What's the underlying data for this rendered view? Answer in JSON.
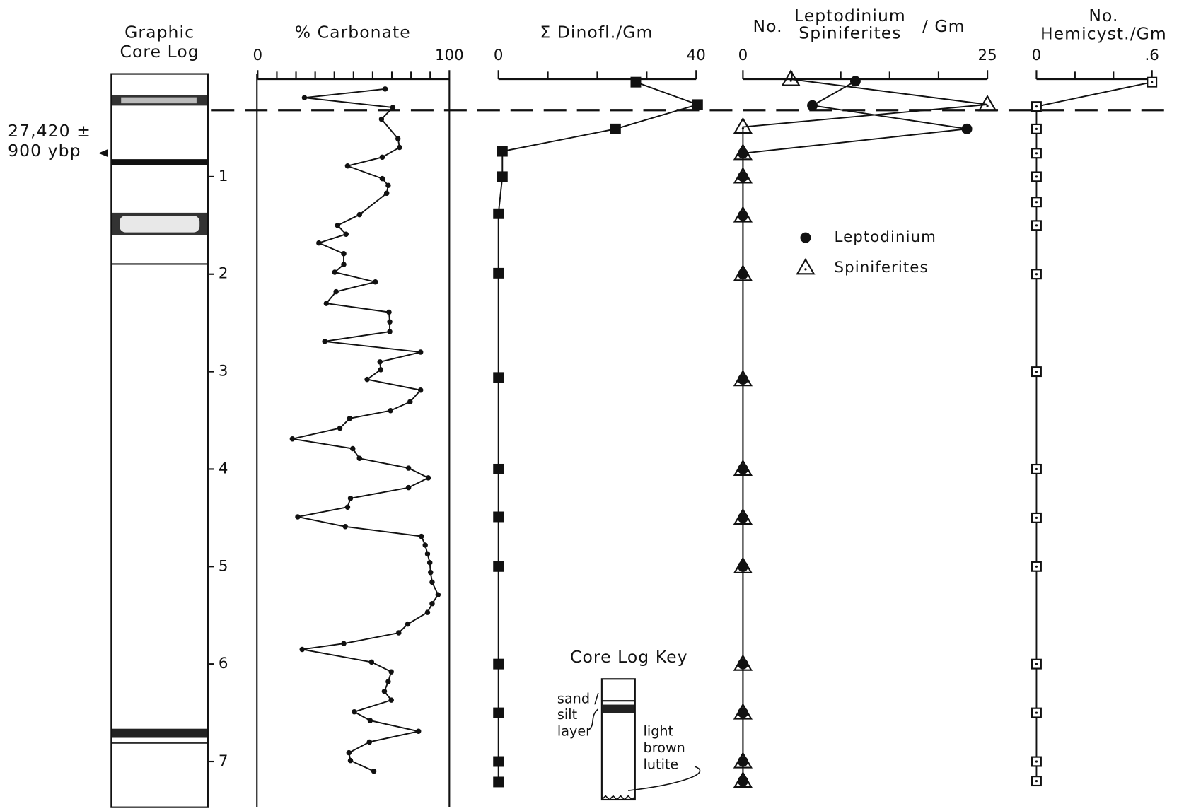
{
  "chart_data": [
    {
      "type": "core-log",
      "title_lines": [
        "Graphic",
        "Core Log"
      ],
      "ylim": [
        0,
        7.5
      ],
      "yticks": [
        1,
        2,
        3,
        4,
        5,
        6,
        7
      ],
      "date_label": [
        "27,420 ±",
        "900 ybp"
      ],
      "key": {
        "title": "Core Log Key",
        "sand_silt": [
          "sand /",
          "silt",
          "layer"
        ],
        "lutite": [
          "light",
          "brown",
          "lutite"
        ]
      }
    },
    {
      "type": "line",
      "title": "% Carbonate",
      "xlim": [
        0,
        100
      ],
      "xticks": [
        0,
        100
      ],
      "xminor": [
        10,
        20,
        30,
        40,
        50,
        60,
        70,
        80,
        90
      ],
      "series": [
        {
          "marker": "dot",
          "color": "#111111",
          "depth": [
            0.1,
            0.19,
            0.29,
            0.41,
            0.61,
            0.7,
            0.8,
            0.89,
            1.02,
            1.09,
            1.17,
            1.39,
            1.5,
            1.59,
            1.68,
            1.79,
            1.9,
            1.98,
            2.08,
            2.18,
            2.3,
            2.39,
            2.49,
            2.59,
            2.69,
            2.8,
            2.9,
            2.98,
            3.08,
            3.19,
            3.31,
            3.4,
            3.48,
            3.58,
            3.69,
            3.79,
            3.89,
            3.99,
            4.09,
            4.19,
            4.3,
            4.39,
            4.49,
            4.59,
            4.69,
            4.78,
            4.87,
            4.96,
            5.06,
            5.16,
            5.29,
            5.38,
            5.47,
            5.59,
            5.68,
            5.79,
            5.85,
            5.98,
            6.08,
            6.18,
            6.28,
            6.37,
            6.49,
            6.58,
            6.69,
            6.8,
            6.91,
            6.99,
            7.1
          ],
          "values": [
            66.5,
            24.4,
            70.5,
            64.6,
            73.2,
            74,
            65,
            46.9,
            65,
            68.1,
            67.3,
            53.1,
            41.7,
            46.1,
            31.9,
            44.9,
            44.9,
            40.2,
            61.4,
            40.9,
            35.8,
            68.5,
            68.9,
            68.9,
            35,
            85,
            63.8,
            64.2,
            57.1,
            85,
            79.5,
            69.3,
            48,
            42.9,
            18.1,
            49.6,
            53.1,
            78.7,
            89,
            78.7,
            48.4,
            46.9,
            20.9,
            45.7,
            85.4,
            87.4,
            88.6,
            89.8,
            90.2,
            91,
            94.1,
            91,
            88.6,
            78.3,
            73.6,
            44.9,
            23.2,
            59.4,
            69.7,
            68.1,
            66.1,
            69.7,
            50.4,
            58.7,
            83.9,
            58.3,
            47.6,
            48.4,
            60.6
          ]
        }
      ]
    },
    {
      "type": "line",
      "title": "Σ Dinofl./Gm",
      "xlim": [
        0,
        40
      ],
      "xticks": [
        0,
        40
      ],
      "xminor": [
        10,
        20,
        30
      ],
      "series": [
        {
          "marker": "square",
          "color": "#111111",
          "depth": [
            0.03,
            0.26,
            0.51,
            0.74,
            1.0,
            1.38,
            1.99,
            3.06,
            4.0,
            4.49,
            5.0,
            6.0,
            6.5,
            7.0,
            7.21
          ],
          "values": [
            27.8,
            40.3,
            23.7,
            0.8,
            0.8,
            0,
            0,
            0,
            0,
            0,
            0,
            0,
            0,
            0,
            0
          ]
        }
      ]
    },
    {
      "type": "line",
      "title_parts": [
        "No.",
        "Leptodinium",
        "Spiniferites",
        "/ Gm"
      ],
      "xlim": [
        0,
        25
      ],
      "xticks": [
        0,
        25
      ],
      "xminor": [
        5,
        10,
        15,
        20
      ],
      "series": [
        {
          "name": "Leptodinium",
          "marker": "circle",
          "color": "#111111",
          "depth": [
            0.02,
            0.27,
            0.51,
            0.76,
            1.0,
            1.4,
            2.0,
            3.08,
            4.0,
            4.5,
            5.0,
            6.0,
            6.5,
            7.0,
            7.2
          ],
          "values": [
            11.5,
            7.1,
            22.9,
            0,
            0,
            0,
            0,
            0,
            0,
            0,
            0,
            0,
            0,
            0,
            0
          ]
        },
        {
          "name": "Spiniferites",
          "marker": "triangle",
          "color": "#111111",
          "depth": [
            0.0,
            0.26,
            0.49,
            0.76,
            1.0,
            1.4,
            2.0,
            3.08,
            4.0,
            4.5,
            5.0,
            6.0,
            6.5,
            7.0,
            7.2
          ],
          "values": [
            4.9,
            25,
            0,
            0,
            0,
            0,
            0,
            0,
            0,
            0,
            0,
            0,
            0,
            0,
            0
          ]
        }
      ]
    },
    {
      "type": "line",
      "title_lines": [
        "No.",
        "Hemicyst./Gm"
      ],
      "xlim": [
        0,
        0.6
      ],
      "xticks": [
        0,
        {
          "value": 0.6,
          "label": ".6"
        }
      ],
      "xminor": [
        0.2,
        0.4
      ],
      "series": [
        {
          "marker": "open-square",
          "color": "#111111",
          "depth": [
            0.03,
            0.28,
            0.51,
            0.76,
            1.0,
            1.26,
            1.5,
            2.0,
            3.0,
            4.0,
            4.5,
            5.0,
            6.0,
            6.5,
            7.0,
            7.2
          ],
          "values": [
            0.6,
            0,
            0,
            0,
            0,
            0,
            0,
            0,
            0,
            0,
            0,
            0,
            0,
            0,
            0,
            0
          ]
        }
      ]
    }
  ]
}
